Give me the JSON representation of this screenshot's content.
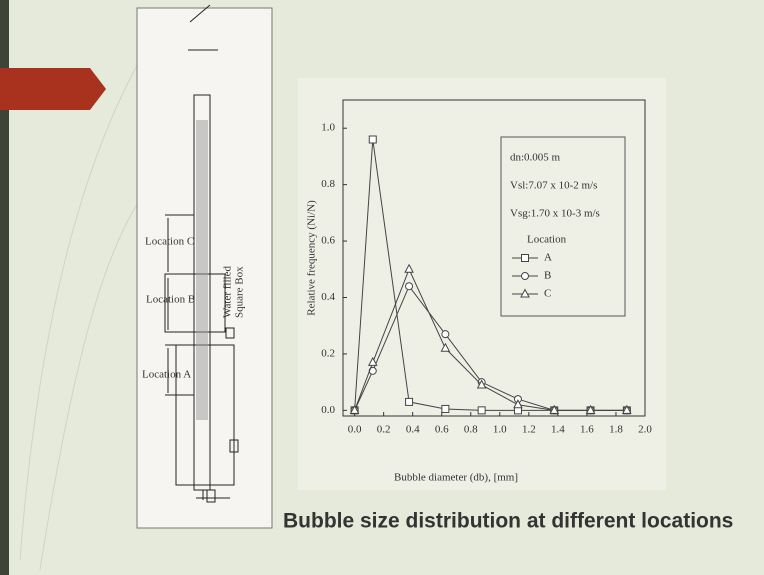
{
  "slide": {
    "caption": "Bubble size distribution at different locations"
  },
  "diagram": {
    "labels": [
      "Location C",
      "Location B",
      "Location A"
    ],
    "box_label": [
      "Water filled",
      "Square Box"
    ]
  },
  "chart_data": {
    "type": "line",
    "y_label": "Relative frequency (Ni/N)",
    "x_label": "Bubble diameter (db), [mm]",
    "annotations": [
      "dn:0.005 m",
      "Vsl:7.07 x 10-2 m/s",
      "Vsg:1.70 x 10-3 m/s"
    ],
    "legend_title": "Location",
    "x": [
      0,
      0.125,
      0.375,
      0.625,
      0.875,
      1.125,
      1.375,
      1.625,
      1.875
    ],
    "series": [
      {
        "name": "A",
        "color": "#444",
        "marker": "square",
        "values": [
          0,
          0.96,
          0.03,
          0.005,
          0,
          0,
          0,
          0,
          0
        ]
      },
      {
        "name": "B",
        "color": "#444",
        "marker": "circle",
        "values": [
          0,
          0.14,
          0.44,
          0.27,
          0.1,
          0.04,
          0,
          0,
          0
        ]
      },
      {
        "name": "C",
        "color": "#444",
        "marker": "triangle",
        "values": [
          0,
          0.17,
          0.5,
          0.22,
          0.09,
          0.02,
          0,
          0,
          0
        ]
      }
    ],
    "xlim": [
      -0.08,
      2.0
    ],
    "ylim": [
      -0.02,
      1.1
    ],
    "xticks": [
      {
        "value": 0,
        "label": "0.0"
      },
      {
        "value": 0.2,
        "label": "0.2"
      },
      {
        "value": 0.4,
        "label": "0.4"
      },
      {
        "value": 0.6,
        "label": "0.6"
      },
      {
        "value": 0.8,
        "label": "0.8"
      },
      {
        "value": 1.0,
        "label": "1.0"
      },
      {
        "value": 1.2,
        "label": "1.2"
      },
      {
        "value": 1.4,
        "label": "1.4"
      },
      {
        "value": 1.6,
        "label": "1.6"
      },
      {
        "value": 1.8,
        "label": "1.8"
      },
      {
        "value": 2.0,
        "label": "2.0"
      }
    ],
    "yticks": [
      {
        "value": 0,
        "label": "0.0"
      },
      {
        "value": 0.2,
        "label": "0.2"
      },
      {
        "value": 0.4,
        "label": "0.4"
      },
      {
        "value": 0.6,
        "label": "0.6"
      },
      {
        "value": 0.8,
        "label": "0.8"
      },
      {
        "value": 1.0,
        "label": "1.0"
      }
    ]
  }
}
